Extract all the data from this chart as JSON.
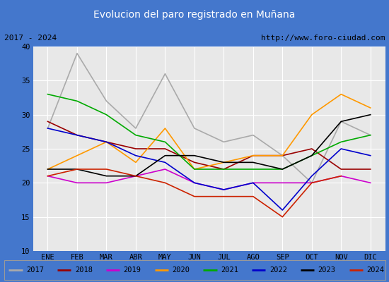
{
  "title": "Evolucion del paro registrado en Muñana",
  "subtitle_left": "2017 - 2024",
  "subtitle_right": "http://www.foro-ciudad.com",
  "months": [
    "ENE",
    "FEB",
    "MAR",
    "ABR",
    "MAY",
    "JUN",
    "JUL",
    "AGO",
    "SEP",
    "OCT",
    "NOV",
    "DIC"
  ],
  "ylim": [
    10,
    40
  ],
  "yticks": [
    10,
    15,
    20,
    25,
    30,
    35,
    40
  ],
  "series": {
    "2017": {
      "color": "#aaaaaa",
      "data": [
        28,
        39,
        32,
        28,
        36,
        28,
        26,
        27,
        24,
        20,
        29,
        27
      ]
    },
    "2018": {
      "color": "#990000",
      "data": [
        29,
        27,
        26,
        25,
        25,
        23,
        22,
        24,
        24,
        25,
        22,
        22
      ]
    },
    "2019": {
      "color": "#cc00cc",
      "data": [
        21,
        20,
        20,
        21,
        22,
        20,
        19,
        20,
        20,
        20,
        21,
        20
      ]
    },
    "2020": {
      "color": "#ff9900",
      "data": [
        22,
        24,
        26,
        23,
        28,
        22,
        23,
        24,
        24,
        30,
        33,
        31
      ]
    },
    "2021": {
      "color": "#00aa00",
      "data": [
        33,
        32,
        30,
        27,
        26,
        22,
        22,
        22,
        22,
        24,
        26,
        27
      ]
    },
    "2022": {
      "color": "#0000cc",
      "data": [
        28,
        27,
        26,
        24,
        23,
        20,
        19,
        20,
        16,
        21,
        25,
        24
      ]
    },
    "2023": {
      "color": "#000000",
      "data": [
        22,
        22,
        21,
        21,
        24,
        24,
        23,
        23,
        22,
        24,
        29,
        30
      ]
    },
    "2024": {
      "color": "#cc2200",
      "data": [
        21,
        22,
        22,
        21,
        20,
        18,
        18,
        18,
        15,
        20,
        21,
        null
      ]
    }
  },
  "title_bg": "#5b8dd9",
  "title_color": "white",
  "plot_bg": "#e8e8e8",
  "grid_color": "white",
  "outer_bg": "#4477cc"
}
